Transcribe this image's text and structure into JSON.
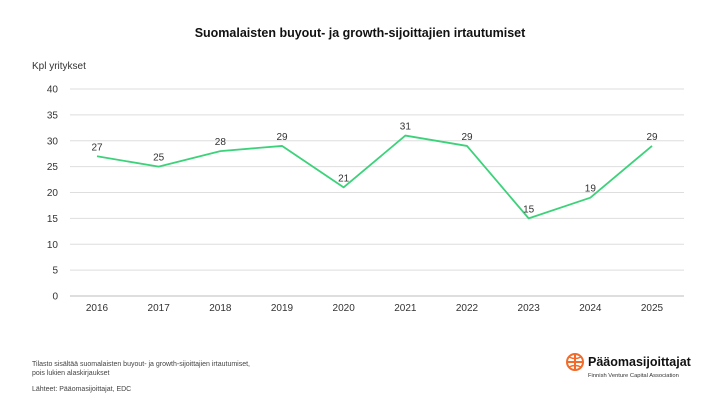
{
  "chart_data": {
    "type": "line",
    "title": "Suomalaisten buyout- ja growth-sijoittajien irtautumiset",
    "ylabel": "Kpl yritykset",
    "xlabel": "",
    "categories": [
      "2016",
      "2017",
      "2018",
      "2019",
      "2020",
      "2021",
      "2022",
      "2023",
      "2024",
      "2025"
    ],
    "series": [
      {
        "values": [
          27,
          25,
          28,
          29,
          21,
          31,
          29,
          15,
          19,
          29
        ]
      }
    ],
    "yticks": [
      "0",
      "5",
      "10",
      "15",
      "20",
      "25",
      "30",
      "35",
      "40"
    ],
    "ylim": [
      0,
      40
    ],
    "grid": true,
    "line_color": "#3cd27a"
  },
  "footnote": "Tilasto sisältää suomalaisten buyout- ja growth-sijoittajien irtautumiset, pois lukien alaskirjaukset",
  "sources": "Lähteet: Pääomasijoittajat, EDC",
  "logo": {
    "name": "Pääomasijoittajat",
    "subtitle": "Finnish Venture Capital Association",
    "accent_color": "#f26b2a"
  }
}
